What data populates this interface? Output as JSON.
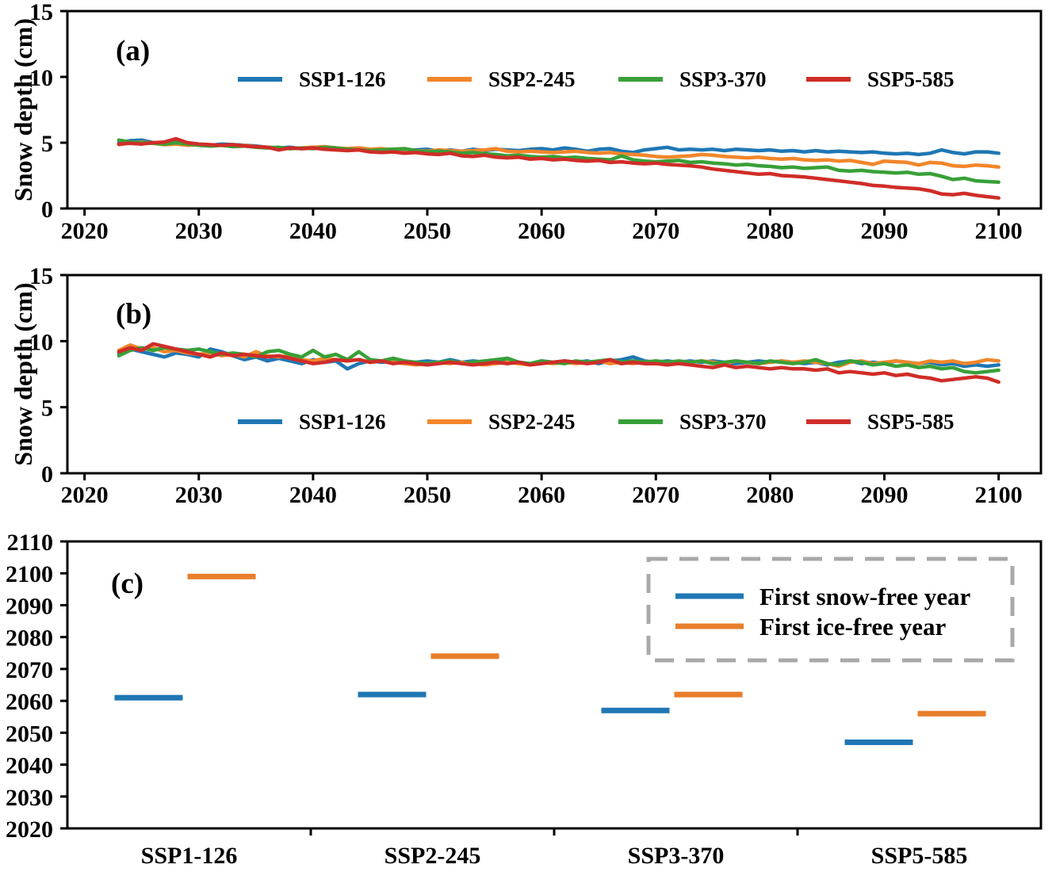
{
  "figure": {
    "background": "#ffffff",
    "colors": {
      "ssp1_126": "#1f77b4",
      "ssp2_245": "#f2862a",
      "ssp3_370": "#38a038",
      "ssp5_585": "#d02d28",
      "snow_free": "#1f77b4",
      "ice_free": "#e97e2b",
      "legend_box_border": "#a9a9a9",
      "axis": "#000000"
    }
  },
  "chart_data": [
    {
      "id": "a",
      "type": "line",
      "panel_label": "(a)",
      "ylabel": "Snow depth (cm)",
      "xlim": [
        2018.5,
        2103.7
      ],
      "ylim": [
        0,
        15
      ],
      "xticks": [
        2020,
        2030,
        2040,
        2050,
        2060,
        2070,
        2080,
        2090,
        2100
      ],
      "yticks": [
        0,
        5,
        10,
        15
      ],
      "grid": false,
      "legend": {
        "position": "upper-center-inside",
        "entries": [
          "SSP1-126",
          "SSP2-245",
          "SSP3-370",
          "SSP5-585"
        ]
      },
      "x_start": 2023,
      "x_step": 1,
      "series": [
        {
          "name": "SSP1-126",
          "color_key": "ssp1_126",
          "values": [
            5.0,
            5.15,
            5.2,
            5.0,
            4.9,
            5.05,
            4.95,
            4.85,
            4.8,
            4.9,
            4.85,
            4.8,
            4.75,
            4.65,
            4.6,
            4.65,
            4.55,
            4.6,
            4.65,
            4.6,
            4.5,
            4.6,
            4.5,
            4.45,
            4.5,
            4.4,
            4.45,
            4.5,
            4.35,
            4.45,
            4.35,
            4.5,
            4.4,
            4.5,
            4.45,
            4.4,
            4.5,
            4.55,
            4.45,
            4.6,
            4.5,
            4.35,
            4.5,
            4.55,
            4.35,
            4.25,
            4.45,
            4.55,
            4.65,
            4.45,
            4.5,
            4.45,
            4.5,
            4.4,
            4.5,
            4.45,
            4.4,
            4.45,
            4.35,
            4.4,
            4.3,
            4.4,
            4.3,
            4.35,
            4.3,
            4.25,
            4.3,
            4.2,
            4.15,
            4.2,
            4.1,
            4.2,
            4.45,
            4.25,
            4.15,
            4.3,
            4.3,
            4.2
          ]
        },
        {
          "name": "SSP2-245",
          "color_key": "ssp2_245",
          "values": [
            4.85,
            5.0,
            5.05,
            4.95,
            4.85,
            4.9,
            4.8,
            4.85,
            4.75,
            4.8,
            4.75,
            4.8,
            4.7,
            4.65,
            4.6,
            4.55,
            4.6,
            4.65,
            4.7,
            4.6,
            4.55,
            4.6,
            4.5,
            4.55,
            4.45,
            4.5,
            4.4,
            4.35,
            4.45,
            4.4,
            4.35,
            4.4,
            4.45,
            4.55,
            4.35,
            4.3,
            4.35,
            4.3,
            4.25,
            4.3,
            4.35,
            4.25,
            4.2,
            4.25,
            4.15,
            4.1,
            4.05,
            3.95,
            3.9,
            3.95,
            4.0,
            4.1,
            4.05,
            3.95,
            3.9,
            3.85,
            3.9,
            3.8,
            3.75,
            3.8,
            3.7,
            3.65,
            3.7,
            3.6,
            3.65,
            3.5,
            3.35,
            3.6,
            3.55,
            3.5,
            3.3,
            3.5,
            3.45,
            3.25,
            3.2,
            3.3,
            3.25,
            3.15
          ]
        },
        {
          "name": "SSP3-370",
          "color_key": "ssp3_370",
          "values": [
            5.2,
            5.05,
            5.0,
            4.95,
            4.9,
            5.0,
            4.9,
            4.8,
            4.75,
            4.8,
            4.7,
            4.75,
            4.65,
            4.6,
            4.65,
            4.55,
            4.6,
            4.55,
            4.65,
            4.6,
            4.5,
            4.45,
            4.4,
            4.45,
            4.5,
            4.55,
            4.4,
            4.3,
            4.35,
            4.3,
            4.2,
            4.25,
            4.15,
            4.1,
            4.0,
            4.05,
            3.95,
            3.9,
            3.95,
            3.85,
            3.9,
            3.8,
            3.75,
            3.7,
            4.0,
            3.7,
            3.6,
            3.55,
            3.6,
            3.65,
            3.5,
            3.55,
            3.45,
            3.4,
            3.3,
            3.35,
            3.25,
            3.2,
            3.1,
            3.15,
            3.05,
            3.1,
            3.15,
            2.9,
            2.85,
            2.9,
            2.8,
            2.75,
            2.7,
            2.75,
            2.6,
            2.65,
            2.45,
            2.2,
            2.3,
            2.1,
            2.05,
            2.0
          ]
        },
        {
          "name": "SSP5-585",
          "color_key": "ssp5_585",
          "values": [
            4.9,
            4.95,
            4.9,
            5.0,
            5.05,
            5.3,
            5.0,
            4.9,
            4.85,
            4.8,
            4.85,
            4.75,
            4.7,
            4.65,
            4.45,
            4.6,
            4.55,
            4.6,
            4.5,
            4.45,
            4.4,
            4.45,
            4.3,
            4.25,
            4.3,
            4.2,
            4.25,
            4.15,
            4.1,
            4.2,
            4.0,
            3.95,
            4.05,
            3.9,
            3.85,
            3.9,
            3.75,
            3.8,
            3.7,
            3.75,
            3.65,
            3.6,
            3.65,
            3.5,
            3.55,
            3.45,
            3.4,
            3.45,
            3.35,
            3.3,
            3.25,
            3.15,
            3.0,
            2.9,
            2.8,
            2.7,
            2.6,
            2.65,
            2.5,
            2.45,
            2.4,
            2.3,
            2.2,
            2.1,
            2.0,
            1.9,
            1.75,
            1.7,
            1.6,
            1.55,
            1.5,
            1.35,
            1.1,
            1.05,
            1.15,
            1.0,
            0.9,
            0.8
          ]
        }
      ]
    },
    {
      "id": "b",
      "type": "line",
      "panel_label": "(b)",
      "ylabel": "Snow depth (cm)",
      "xlim": [
        2018.5,
        2103.7
      ],
      "ylim": [
        0,
        15
      ],
      "xticks": [
        2020,
        2030,
        2040,
        2050,
        2060,
        2070,
        2080,
        2090,
        2100
      ],
      "yticks": [
        0,
        5,
        10,
        15
      ],
      "grid": false,
      "legend": {
        "position": "lower-center-inside",
        "entries": [
          "SSP1-126",
          "SSP2-245",
          "SSP3-370",
          "SSP5-585"
        ]
      },
      "x_start": 2023,
      "x_step": 1,
      "series": [
        {
          "name": "SSP1-126",
          "color_key": "ssp1_126",
          "values": [
            9.1,
            9.4,
            9.2,
            9.0,
            8.8,
            9.1,
            9.0,
            8.8,
            9.4,
            9.2,
            8.9,
            8.6,
            8.8,
            8.5,
            8.7,
            8.5,
            8.3,
            8.6,
            8.4,
            8.5,
            7.9,
            8.3,
            8.5,
            8.4,
            8.5,
            8.3,
            8.4,
            8.5,
            8.4,
            8.6,
            8.4,
            8.5,
            8.4,
            8.3,
            8.7,
            8.4,
            8.3,
            8.5,
            8.4,
            8.5,
            8.4,
            8.5,
            8.3,
            8.5,
            8.6,
            8.8,
            8.5,
            8.4,
            8.5,
            8.4,
            8.5,
            8.4,
            8.5,
            8.4,
            8.3,
            8.4,
            8.5,
            8.4,
            8.5,
            8.4,
            8.3,
            8.4,
            8.2,
            8.4,
            8.5,
            8.3,
            8.4,
            8.3,
            8.5,
            8.4,
            8.3,
            8.4,
            8.2,
            8.3,
            8.1,
            8.2,
            8.1,
            8.2
          ]
        },
        {
          "name": "SSP2-245",
          "color_key": "ssp2_245",
          "values": [
            9.3,
            9.7,
            9.4,
            9.5,
            9.2,
            9.3,
            9.1,
            9.0,
            9.1,
            8.9,
            9.0,
            8.8,
            9.2,
            8.9,
            8.8,
            8.9,
            8.6,
            8.5,
            8.7,
            8.6,
            8.5,
            8.6,
            8.4,
            8.5,
            8.4,
            8.3,
            8.2,
            8.3,
            8.4,
            8.3,
            8.4,
            8.3,
            8.2,
            8.3,
            8.4,
            8.3,
            8.2,
            8.4,
            8.3,
            8.4,
            8.3,
            8.4,
            8.5,
            8.3,
            8.4,
            8.3,
            8.4,
            8.5,
            8.4,
            8.3,
            8.4,
            8.5,
            8.4,
            8.3,
            8.5,
            8.4,
            8.3,
            8.4,
            8.5,
            8.4,
            8.5,
            8.4,
            8.3,
            8.1,
            8.4,
            8.5,
            8.3,
            8.4,
            8.5,
            8.4,
            8.3,
            8.5,
            8.4,
            8.5,
            8.3,
            8.4,
            8.6,
            8.5
          ]
        },
        {
          "name": "SSP3-370",
          "color_key": "ssp3_370",
          "values": [
            8.9,
            9.3,
            9.5,
            9.3,
            9.5,
            9.4,
            9.3,
            9.4,
            9.2,
            9.0,
            9.1,
            9.0,
            8.8,
            9.2,
            9.3,
            9.0,
            8.8,
            9.3,
            8.8,
            9.0,
            8.6,
            9.2,
            8.6,
            8.5,
            8.7,
            8.5,
            8.4,
            8.3,
            8.4,
            8.5,
            8.3,
            8.4,
            8.5,
            8.6,
            8.7,
            8.4,
            8.3,
            8.5,
            8.4,
            8.3,
            8.5,
            8.4,
            8.5,
            8.6,
            8.4,
            8.5,
            8.4,
            8.5,
            8.4,
            8.5,
            8.4,
            8.5,
            8.3,
            8.4,
            8.5,
            8.4,
            8.3,
            8.5,
            8.4,
            8.3,
            8.4,
            8.6,
            8.3,
            8.2,
            8.5,
            8.4,
            8.2,
            8.3,
            8.1,
            8.2,
            8.0,
            8.1,
            7.9,
            8.0,
            7.7,
            7.6,
            7.7,
            7.8
          ]
        },
        {
          "name": "SSP5-585",
          "color_key": "ssp5_585",
          "values": [
            9.2,
            9.5,
            9.3,
            9.8,
            9.6,
            9.4,
            9.2,
            9.0,
            8.8,
            9.1,
            8.9,
            9.0,
            8.9,
            8.8,
            8.9,
            8.7,
            8.5,
            8.3,
            8.4,
            8.6,
            8.5,
            8.6,
            8.4,
            8.5,
            8.3,
            8.4,
            8.3,
            8.2,
            8.3,
            8.4,
            8.3,
            8.2,
            8.3,
            8.4,
            8.3,
            8.4,
            8.2,
            8.3,
            8.4,
            8.5,
            8.4,
            8.3,
            8.4,
            8.6,
            8.3,
            8.4,
            8.3,
            8.3,
            8.2,
            8.3,
            8.2,
            8.1,
            8.0,
            8.2,
            8.0,
            8.1,
            8.0,
            7.9,
            8.0,
            7.9,
            7.9,
            7.8,
            7.9,
            7.6,
            7.7,
            7.6,
            7.5,
            7.6,
            7.4,
            7.5,
            7.3,
            7.2,
            7.0,
            7.1,
            7.2,
            7.3,
            7.2,
            6.9
          ]
        }
      ]
    },
    {
      "id": "c",
      "type": "scatter",
      "panel_label": "(c)",
      "marker_style": "horizontal-tick",
      "categories": [
        "SSP1-126",
        "SSP2-245",
        "SSP3-370",
        "SSP5-585"
      ],
      "ylim": [
        2020,
        2110
      ],
      "yticks": [
        2020,
        2030,
        2040,
        2050,
        2060,
        2070,
        2080,
        2090,
        2100,
        2110
      ],
      "grid": false,
      "legend": {
        "position": "upper-right-inside",
        "style": "dashed-gray-box",
        "entries": [
          "First snow-free year",
          "First ice-free year"
        ]
      },
      "series": [
        {
          "name": "First snow-free year",
          "color_key": "snow_free",
          "values": [
            2061,
            2062,
            2057,
            2047
          ]
        },
        {
          "name": "First ice-free year",
          "color_key": "ice_free",
          "values": [
            2099,
            2074,
            2062,
            2056
          ]
        }
      ]
    }
  ]
}
